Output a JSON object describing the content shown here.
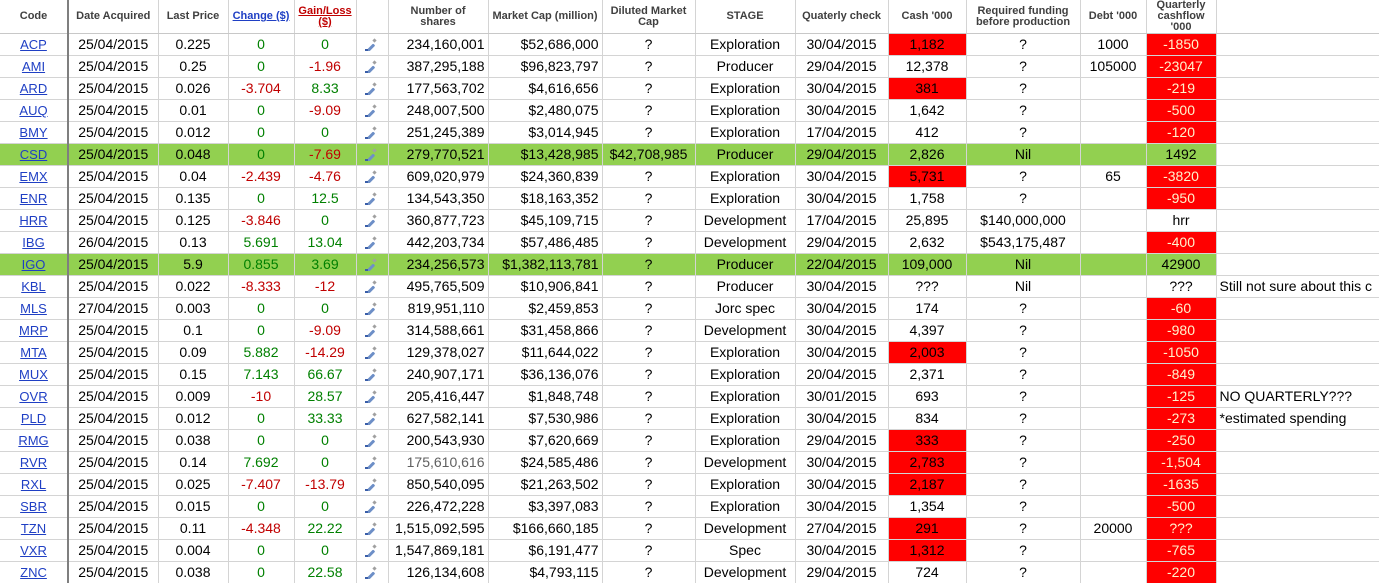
{
  "headers": {
    "code": "Code",
    "date": "Date Acquired",
    "price": "Last Price",
    "change": "Change ($)",
    "gain": "Gain/Loss ($)",
    "shares": "Number of shares",
    "mcap": "Market Cap (million)",
    "diluted": "Diluted Market Cap",
    "stage": "STAGE",
    "qcheck": "Quaterly check",
    "cash": "Cash '000",
    "funding": "Required funding before production",
    "debt": "Debt '000",
    "qcash": "Quarterly cashflow '000"
  },
  "colors": {
    "green_row": "#92d050",
    "red_cell": "#ff0000",
    "link_blue": "#1f3fc4"
  },
  "rows": [
    {
      "code": "ACP",
      "date": "25/04/2015",
      "price": "0.225",
      "change": "0",
      "gain": "0",
      "shares": "234,160,001",
      "mcap": "$52,686,000",
      "diluted": "?",
      "stage": "Exploration",
      "qcheck": "30/04/2015",
      "cash": "1,182",
      "funding": "?",
      "debt": "1000",
      "qcash": "-1850",
      "note": ""
    },
    {
      "code": "AMI",
      "date": "25/04/2015",
      "price": "0.25",
      "change": "0",
      "gain": "-1.96",
      "shares": "387,295,188",
      "mcap": "$96,823,797",
      "diluted": "?",
      "stage": "Producer",
      "qcheck": "29/04/2015",
      "cash": "12,378",
      "funding": "?",
      "debt": "105000",
      "qcash": "-23047",
      "note": ""
    },
    {
      "code": "ARD",
      "date": "25/04/2015",
      "price": "0.026",
      "change": "-3.704",
      "gain": "8.33",
      "shares": "177,563,702",
      "mcap": "$4,616,656",
      "diluted": "?",
      "stage": "Exploration",
      "qcheck": "30/04/2015",
      "cash": "381",
      "funding": "?",
      "debt": "",
      "qcash": "-219",
      "note": ""
    },
    {
      "code": "AUQ",
      "date": "25/04/2015",
      "price": "0.01",
      "change": "0",
      "gain": "-9.09",
      "shares": "248,007,500",
      "mcap": "$2,480,075",
      "diluted": "?",
      "stage": "Exploration",
      "qcheck": "30/04/2015",
      "cash": "1,642",
      "funding": "?",
      "debt": "",
      "qcash": "-500",
      "note": ""
    },
    {
      "code": "BMY",
      "date": "25/04/2015",
      "price": "0.012",
      "change": "0",
      "gain": "0",
      "shares": "251,245,389",
      "mcap": "$3,014,945",
      "diluted": "?",
      "stage": "Exploration",
      "qcheck": "17/04/2015",
      "cash": "412",
      "funding": "?",
      "debt": "",
      "qcash": "-120",
      "note": ""
    },
    {
      "code": "CSD",
      "date": "25/04/2015",
      "price": "0.048",
      "change": "0",
      "gain": "-7.69",
      "shares": "279,770,521",
      "mcap": "$13,428,985",
      "diluted": "$42,708,985",
      "stage": "Producer",
      "qcheck": "29/04/2015",
      "cash": "2,826",
      "funding": "Nil",
      "debt": "",
      "qcash": "1492",
      "note": ""
    },
    {
      "code": "EMX",
      "date": "25/04/2015",
      "price": "0.04",
      "change": "-2.439",
      "gain": "-4.76",
      "shares": "609,020,979",
      "mcap": "$24,360,839",
      "diluted": "?",
      "stage": "Exploration",
      "qcheck": "30/04/2015",
      "cash": "5,731",
      "funding": "?",
      "debt": "65",
      "qcash": "-3820",
      "note": ""
    },
    {
      "code": "ENR",
      "date": "25/04/2015",
      "price": "0.135",
      "change": "0",
      "gain": "12.5",
      "shares": "134,543,350",
      "mcap": "$18,163,352",
      "diluted": "?",
      "stage": "Exploration",
      "qcheck": "30/04/2015",
      "cash": "1,758",
      "funding": "?",
      "debt": "",
      "qcash": "-950",
      "note": ""
    },
    {
      "code": "HRR",
      "date": "25/04/2015",
      "price": "0.125",
      "change": "-3.846",
      "gain": "0",
      "shares": "360,877,723",
      "mcap": "$45,109,715",
      "diluted": "?",
      "stage": "Development",
      "qcheck": "17/04/2015",
      "cash": "25,895",
      "funding": "$140,000,000",
      "debt": "",
      "qcash": "hrr",
      "note": ""
    },
    {
      "code": "IBG",
      "date": "26/04/2015",
      "price": "0.13",
      "change": "5.691",
      "gain": "13.04",
      "shares": "442,203,734",
      "mcap": "$57,486,485",
      "diluted": "?",
      "stage": "Development",
      "qcheck": "29/04/2015",
      "cash": "2,632",
      "funding": "$543,175,487",
      "debt": "",
      "qcash": "-400",
      "note": ""
    },
    {
      "code": "IGO",
      "date": "25/04/2015",
      "price": "5.9",
      "change": "0.855",
      "gain": "3.69",
      "shares": "234,256,573",
      "mcap": "$1,382,113,781",
      "diluted": "?",
      "stage": "Producer",
      "qcheck": "22/04/2015",
      "cash": "109,000",
      "funding": "Nil",
      "debt": "",
      "qcash": "42900",
      "note": ""
    },
    {
      "code": "KBL",
      "date": "25/04/2015",
      "price": "0.022",
      "change": "-8.333",
      "gain": "-12",
      "shares": "495,765,509",
      "mcap": "$10,906,841",
      "diluted": "?",
      "stage": "Producer",
      "qcheck": "30/04/2015",
      "cash": "???",
      "funding": "Nil",
      "debt": "",
      "qcash": "???",
      "note": "Still not sure about this c"
    },
    {
      "code": "MLS",
      "date": "27/04/2015",
      "price": "0.003",
      "change": "0",
      "gain": "0",
      "shares": "819,951,110",
      "mcap": "$2,459,853",
      "diluted": "?",
      "stage": "Jorc spec",
      "qcheck": "30/04/2015",
      "cash": "174",
      "funding": "?",
      "debt": "",
      "qcash": "-60",
      "note": ""
    },
    {
      "code": "MRP",
      "date": "25/04/2015",
      "price": "0.1",
      "change": "0",
      "gain": "-9.09",
      "shares": "314,588,661",
      "mcap": "$31,458,866",
      "diluted": "?",
      "stage": "Development",
      "qcheck": "30/04/2015",
      "cash": "4,397",
      "funding": "?",
      "debt": "",
      "qcash": "-980",
      "note": ""
    },
    {
      "code": "MTA",
      "date": "25/04/2015",
      "price": "0.09",
      "change": "5.882",
      "gain": "-14.29",
      "shares": "129,378,027",
      "mcap": "$11,644,022",
      "diluted": "?",
      "stage": "Exploration",
      "qcheck": "30/04/2015",
      "cash": "2,003",
      "funding": "?",
      "debt": "",
      "qcash": "-1050",
      "note": ""
    },
    {
      "code": "MUX",
      "date": "25/04/2015",
      "price": "0.15",
      "change": "7.143",
      "gain": "66.67",
      "shares": "240,907,171",
      "mcap": "$36,136,076",
      "diluted": "?",
      "stage": "Exploration",
      "qcheck": "20/04/2015",
      "cash": "2,371",
      "funding": "?",
      "debt": "",
      "qcash": "-849",
      "note": ""
    },
    {
      "code": "OVR",
      "date": "25/04/2015",
      "price": "0.009",
      "change": "-10",
      "gain": "28.57",
      "shares": "205,416,447",
      "mcap": "$1,848,748",
      "diluted": "?",
      "stage": "Exploration",
      "qcheck": "30/01/2015",
      "cash": "693",
      "funding": "?",
      "debt": "",
      "qcash": "-125",
      "note": "NO QUARTERLY???"
    },
    {
      "code": "PLD",
      "date": "25/04/2015",
      "price": "0.012",
      "change": "0",
      "gain": "33.33",
      "shares": "627,582,141",
      "mcap": "$7,530,986",
      "diluted": "?",
      "stage": "Exploration",
      "qcheck": "30/04/2015",
      "cash": "834",
      "funding": "?",
      "debt": "",
      "qcash": "-273",
      "note": "*estimated spending"
    },
    {
      "code": "RMG",
      "date": "25/04/2015",
      "price": "0.038",
      "change": "0",
      "gain": "0",
      "shares": "200,543,930",
      "mcap": "$7,620,669",
      "diluted": "?",
      "stage": "Exploration",
      "qcheck": "29/04/2015",
      "cash": "333",
      "funding": "?",
      "debt": "",
      "qcash": "-250",
      "note": ""
    },
    {
      "code": "RVR",
      "date": "25/04/2015",
      "price": "0.14",
      "change": "7.692",
      "gain": "0",
      "shares": "175,610,616",
      "mcap": "$24,585,486",
      "diluted": "?",
      "stage": "Development",
      "qcheck": "30/04/2015",
      "cash": "2,783",
      "funding": "?",
      "debt": "",
      "qcash": "-1,504",
      "note": ""
    },
    {
      "code": "RXL",
      "date": "25/04/2015",
      "price": "0.025",
      "change": "-7.407",
      "gain": "-13.79",
      "shares": "850,540,095",
      "mcap": "$21,263,502",
      "diluted": "?",
      "stage": "Exploration",
      "qcheck": "30/04/2015",
      "cash": "2,187",
      "funding": "?",
      "debt": "",
      "qcash": "-1635",
      "note": ""
    },
    {
      "code": "SBR",
      "date": "25/04/2015",
      "price": "0.015",
      "change": "0",
      "gain": "0",
      "shares": "226,472,228",
      "mcap": "$3,397,083",
      "diluted": "?",
      "stage": "Exploration",
      "qcheck": "30/04/2015",
      "cash": "1,354",
      "funding": "?",
      "debt": "",
      "qcash": "-500",
      "note": ""
    },
    {
      "code": "TZN",
      "date": "25/04/2015",
      "price": "0.11",
      "change": "-4.348",
      "gain": "22.22",
      "shares": "1,515,092,595",
      "mcap": "$166,660,185",
      "diluted": "?",
      "stage": "Development",
      "qcheck": "27/04/2015",
      "cash": "291",
      "funding": "?",
      "debt": "20000",
      "qcash": "???",
      "note": ""
    },
    {
      "code": "VXR",
      "date": "25/04/2015",
      "price": "0.004",
      "change": "0",
      "gain": "0",
      "shares": "1,547,869,181",
      "mcap": "$6,191,477",
      "diluted": "?",
      "stage": "Spec",
      "qcheck": "30/04/2015",
      "cash": "1,312",
      "funding": "?",
      "debt": "",
      "qcash": "-765",
      "note": ""
    },
    {
      "code": "ZNC",
      "date": "25/04/2015",
      "price": "0.038",
      "change": "0",
      "gain": "22.58",
      "shares": "126,134,608",
      "mcap": "$4,793,115",
      "diluted": "?",
      "stage": "Development",
      "qcheck": "29/04/2015",
      "cash": "724",
      "funding": "?",
      "debt": "",
      "qcash": "-220",
      "note": ""
    }
  ]
}
